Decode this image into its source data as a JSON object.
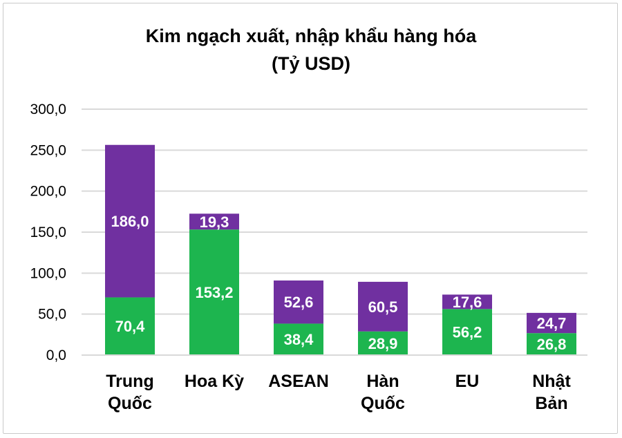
{
  "chart_data": {
    "type": "bar",
    "stacked": true,
    "title": "Kim ngạch xuất, nhập khẩu hàng hóa",
    "subtitle": "(Tỷ USD)",
    "categories": [
      [
        "Trung",
        "Quốc"
      ],
      [
        "Hoa Kỳ"
      ],
      [
        "ASEAN"
      ],
      [
        "Hàn",
        "Quốc"
      ],
      [
        "EU"
      ],
      [
        "Nhật",
        "Bản"
      ]
    ],
    "series": [
      {
        "values": [
          70.4,
          153.2,
          38.4,
          28.9,
          56.2,
          26.8
        ],
        "labels": [
          "70,4",
          "153,2",
          "38,4",
          "28,9",
          "56,2",
          "26,8"
        ],
        "color": "#1db54f"
      },
      {
        "values": [
          186.0,
          19.3,
          52.6,
          60.5,
          17.6,
          24.7
        ],
        "labels": [
          "186,0",
          "19,3",
          "52,6",
          "60,5",
          "17,6",
          "24,7"
        ],
        "color": "#7030a0"
      }
    ],
    "ylim": [
      0,
      300
    ],
    "yticks": [
      "0,0",
      "50,0",
      "100,0",
      "150,0",
      "200,0",
      "250,0",
      "300,0"
    ],
    "grid": true,
    "legend": "none"
  }
}
